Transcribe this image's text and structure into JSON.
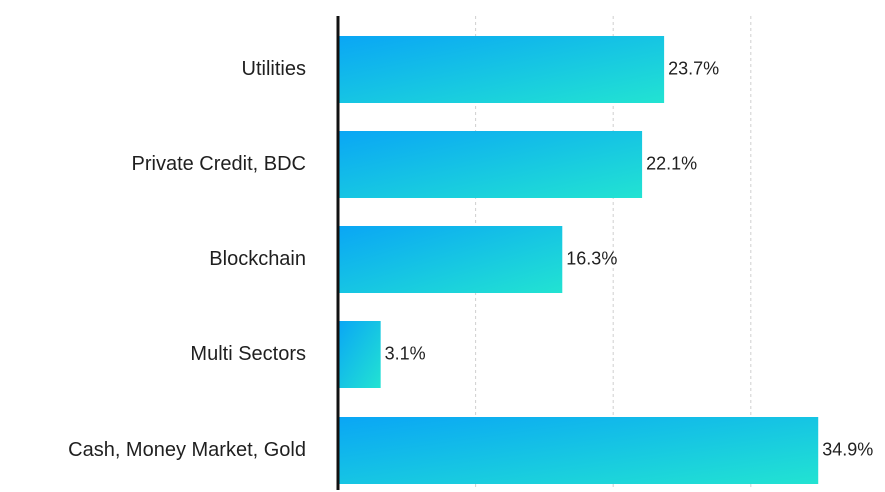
{
  "chart_data": {
    "type": "bar",
    "orientation": "horizontal",
    "categories": [
      "Utilities",
      "Private Credit, BDC",
      "Blockchain",
      "Multi Sectors",
      "Cash, Money Market, Gold"
    ],
    "values": [
      23.7,
      22.1,
      16.3,
      3.1,
      34.9
    ],
    "value_labels": [
      "23.7%",
      "22.1%",
      "16.3%",
      "3.1%",
      "34.9%"
    ],
    "xlim": [
      0,
      35
    ],
    "x_gridlines": [
      10,
      20,
      30
    ],
    "grid": true,
    "legend": "none",
    "colors": {
      "bar_gradient_start": "#0aa6f5",
      "bar_gradient_end": "#22e3d2",
      "axis": "#111111",
      "grid": "#cfcfcf",
      "text": "#1f1f1f"
    }
  }
}
